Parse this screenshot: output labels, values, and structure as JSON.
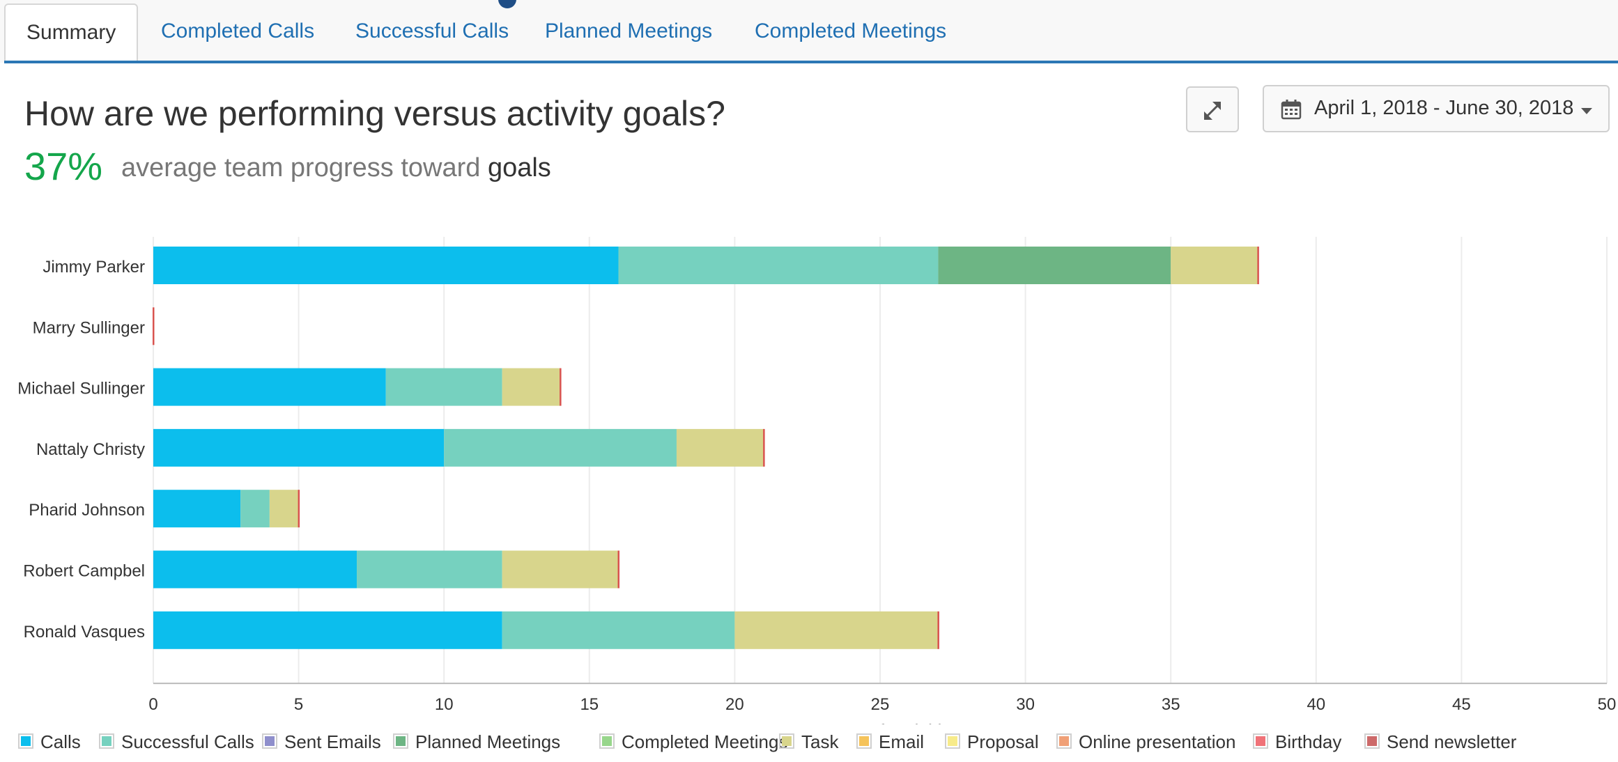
{
  "tabs": [
    {
      "label": "Summary",
      "active": true
    },
    {
      "label": "Completed Calls",
      "active": false
    },
    {
      "label": "Successful Calls",
      "active": false
    },
    {
      "label": "Planned Meetings",
      "active": false
    },
    {
      "label": "Completed Meetings",
      "active": false
    }
  ],
  "header": {
    "title": "How are we performing versus activity goals?",
    "percent": "37%",
    "progress_text": "average team progress toward",
    "progress_strong": "goals"
  },
  "toolbar": {
    "expand_icon": "expand-icon",
    "date_range": "April 1, 2018 - June 30, 2018",
    "calendar_icon": "calendar-icon",
    "caret_icon": "caret-down-icon"
  },
  "chart_data": {
    "type": "bar",
    "orientation": "horizontal",
    "stacked": true,
    "categories": [
      "Jimmy Parker",
      "Marry Sullinger",
      "Michael Sullinger",
      "Nattaly Christy",
      "Pharid Johnson",
      "Robert Campbel",
      "Ronald Vasques"
    ],
    "series": [
      {
        "name": "Calls",
        "color": "#0cbeed",
        "values": [
          16,
          0,
          8,
          10,
          3,
          7,
          12
        ]
      },
      {
        "name": "Successful Calls",
        "color": "#76d1bf",
        "values": [
          11,
          0,
          4,
          8,
          1,
          5,
          8
        ]
      },
      {
        "name": "Sent Emails",
        "color": "#8f8fcc",
        "values": [
          0,
          0,
          0,
          0,
          0,
          0,
          0
        ]
      },
      {
        "name": "Planned Meetings",
        "color": "#6db584",
        "values": [
          8,
          0,
          0,
          0,
          0,
          0,
          0
        ]
      },
      {
        "name": "Completed Meetings",
        "color": "#98d68c",
        "values": [
          0,
          0,
          0,
          0,
          0,
          0,
          0
        ]
      },
      {
        "name": "Task",
        "color": "#d8d58c",
        "values": [
          3,
          0,
          2,
          3,
          1,
          4,
          7
        ]
      },
      {
        "name": "Email",
        "color": "#f5c35a",
        "values": [
          0,
          0,
          0,
          0,
          0,
          0,
          0
        ]
      },
      {
        "name": "Proposal",
        "color": "#f7eb8a",
        "values": [
          0,
          0,
          0,
          0,
          0,
          0,
          0
        ]
      },
      {
        "name": "Online presentation",
        "color": "#f0a077",
        "values": [
          0,
          0,
          0,
          0,
          0,
          0,
          0
        ]
      },
      {
        "name": "Birthday",
        "color": "#f07278",
        "values": [
          0,
          0,
          0,
          0,
          0,
          0,
          0
        ]
      },
      {
        "name": "Send newsletter",
        "color": "#cd6a6a",
        "values": [
          0,
          0,
          0,
          0,
          0,
          0,
          0
        ]
      }
    ],
    "xlabel": "Amount of activities",
    "xlim": [
      0,
      50
    ],
    "xticks": [
      0,
      5,
      10,
      15,
      20,
      25,
      30,
      35,
      40,
      45,
      50
    ],
    "grid": true,
    "legend": "bottom"
  }
}
